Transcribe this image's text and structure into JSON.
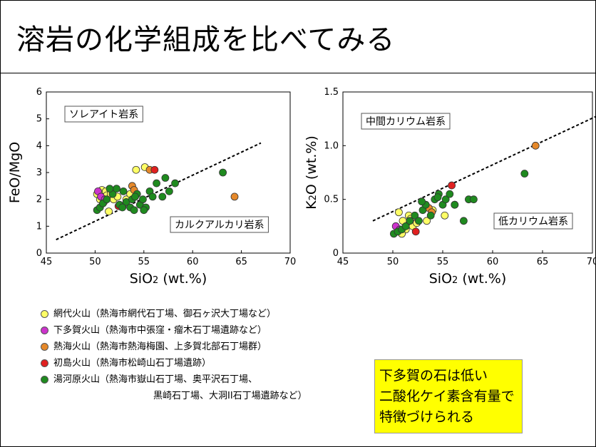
{
  "title": "溶岩の化学組成を比べてみる",
  "colors": {
    "ajiro": "#ffff66",
    "shimotaga": "#cc33cc",
    "atami": "#e6892a",
    "hatsushima": "#e02020",
    "yugawara": "#1f8a1f"
  },
  "legend": [
    {
      "key": "ajiro",
      "label": "網代火山（熱海市網代石丁場、御石ヶ沢大丁場など）"
    },
    {
      "key": "shimotaga",
      "label": "下多賀火山（熱海市中張窪・瘤木石丁場遺跡など）"
    },
    {
      "key": "atami",
      "label": "熱海火山（熱海市熱海梅園、上多賀北部石丁場群）"
    },
    {
      "key": "hatsushima",
      "label": "初島火山（熱海市松崎山石丁場遺跡）"
    },
    {
      "key": "yugawara",
      "label": "湯河原火山（熱海市嶽山石丁場、奥平沢石丁場、"
    }
  ],
  "legend_cont": "黒崎石丁場、大洞II石丁場遺跡など）",
  "note": [
    "下多賀の石は低い",
    "二酸化ケイ素含有量で",
    "特徴づけられる"
  ],
  "chart_data": [
    {
      "type": "scatter",
      "ylabel": "FeO/MgO",
      "xlabel_main": "SiO",
      "xlabel_sub": "2",
      "xlabel_tail": " (wt.%)",
      "xlim": [
        45,
        70
      ],
      "ylim": [
        0,
        6
      ],
      "xticks": [
        "45",
        "50",
        "55",
        "60",
        "65",
        "70"
      ],
      "yticks": [
        "0",
        "1",
        "2",
        "3",
        "4",
        "5",
        "6"
      ],
      "regions": [
        "ソレアイト岩系",
        "カルクアルカリ岩系"
      ],
      "divider": [
        [
          46,
          0.5
        ],
        [
          67,
          4.1
        ]
      ],
      "series": [
        {
          "key": "ajiro",
          "x": [
            50.2,
            50.5,
            50.7,
            50.9,
            51.1,
            51.2,
            51.4,
            51.6,
            51.9,
            52.3,
            53.2,
            53.6,
            54.2,
            55.1
          ],
          "y": [
            2.2,
            2.0,
            2.35,
            1.9,
            2.3,
            2.15,
            1.55,
            2.2,
            2.0,
            2.1,
            2.0,
            2.2,
            3.1,
            3.2
          ]
        },
        {
          "key": "shimotaga",
          "x": [
            50.3,
            50.6,
            51.0
          ],
          "y": [
            2.3,
            2.1,
            2.0
          ]
        },
        {
          "key": "atami",
          "x": [
            53.8,
            54.0,
            64.3,
            55.6
          ],
          "y": [
            2.5,
            2.35,
            2.1,
            3.1
          ]
        },
        {
          "key": "hatsushima",
          "x": [
            52.4,
            56.1
          ],
          "y": [
            1.75,
            3.1
          ]
        },
        {
          "key": "yugawara",
          "x": [
            50.2,
            50.5,
            50.8,
            51.2,
            51.8,
            52.2,
            52.5,
            52.9,
            53.2,
            53.6,
            53.8,
            54.0,
            54.3,
            54.6,
            54.9,
            55.2,
            55.6,
            55.9,
            56.3,
            57.2,
            57.6,
            58.2,
            63.1,
            51.5,
            52.8,
            54.1,
            55.0,
            56.9
          ],
          "y": [
            1.6,
            1.7,
            1.85,
            2.0,
            2.2,
            2.4,
            1.8,
            2.3,
            1.9,
            1.7,
            2.0,
            1.6,
            2.2,
            1.8,
            2.0,
            1.7,
            2.3,
            2.1,
            2.6,
            2.8,
            2.3,
            2.6,
            3.0,
            2.4,
            1.7,
            2.1,
            1.6,
            2.1
          ]
        }
      ]
    },
    {
      "type": "scatter",
      "ylabel_main": "K",
      "ylabel_sub": "2",
      "ylabel_tail": "O (wt.%)",
      "xlabel_main": "SiO",
      "xlabel_sub": "2",
      "xlabel_tail": " (wt.%)",
      "xlim": [
        45,
        70
      ],
      "ylim": [
        0,
        1.5
      ],
      "xticks": [
        "45",
        "50",
        "55",
        "60",
        "65",
        "70"
      ],
      "yticks": [
        "0",
        "0.5",
        "1.0",
        "1.5"
      ],
      "regions": [
        "中間カリウム岩系",
        "低カリウム岩系"
      ],
      "divider": [
        [
          48,
          0.3
        ],
        [
          71,
          1.3
        ]
      ],
      "series": [
        {
          "key": "ajiro",
          "x": [
            50.6,
            51.0,
            51.3,
            51.6,
            52.0,
            52.4,
            53.4,
            54.0,
            55.2,
            50.9,
            51.8
          ],
          "y": [
            0.38,
            0.3,
            0.22,
            0.35,
            0.25,
            0.28,
            0.3,
            0.4,
            0.35,
            0.18,
            0.32
          ]
        },
        {
          "key": "shimotaga",
          "x": [
            50.3,
            50.7
          ],
          "y": [
            0.25,
            0.22
          ]
        },
        {
          "key": "atami",
          "x": [
            53.6,
            53.9,
            56.2,
            64.3
          ],
          "y": [
            0.42,
            0.38,
            0.45,
            1.0
          ]
        },
        {
          "key": "hatsushima",
          "x": [
            52.3,
            55.9
          ],
          "y": [
            0.2,
            0.63
          ]
        },
        {
          "key": "yugawara",
          "x": [
            50.1,
            50.5,
            50.9,
            51.3,
            51.7,
            52.2,
            52.6,
            53.0,
            53.3,
            53.8,
            54.2,
            54.6,
            55.0,
            55.3,
            55.7,
            56.2,
            57.1,
            57.6,
            58.1,
            63.2,
            52.9,
            54.5
          ],
          "y": [
            0.18,
            0.2,
            0.22,
            0.25,
            0.3,
            0.35,
            0.3,
            0.4,
            0.45,
            0.35,
            0.5,
            0.55,
            0.45,
            0.5,
            0.55,
            0.45,
            0.3,
            0.5,
            0.5,
            0.74,
            0.48,
            0.52
          ]
        }
      ]
    }
  ]
}
